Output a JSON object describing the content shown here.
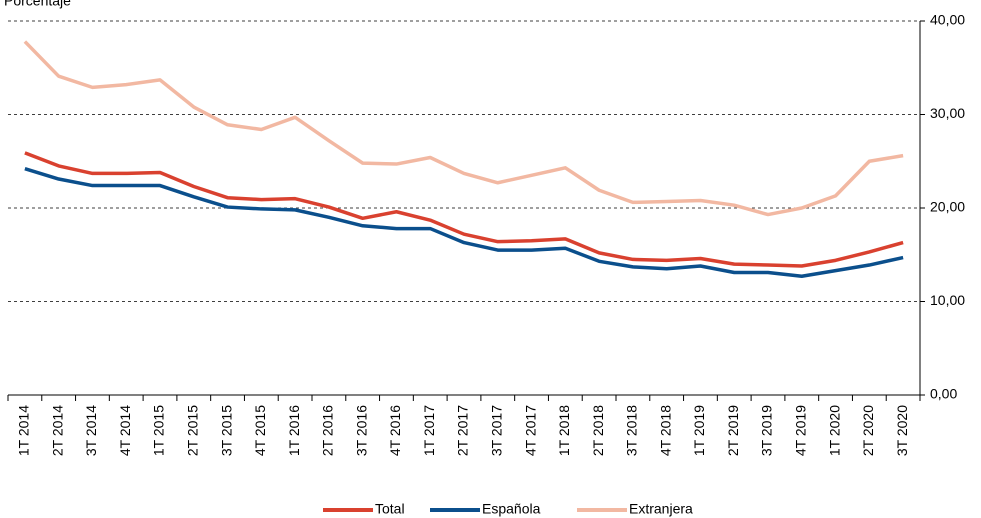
{
  "chart_data": {
    "type": "line",
    "y_label": "Porcentaje",
    "categories": [
      "1T 2014",
      "2T 2014",
      "3T 2014",
      "4T 2014",
      "1T 2015",
      "2T 2015",
      "3T 2015",
      "4T 2015",
      "1T 2016",
      "2T 2016",
      "3T 2016",
      "4T 2016",
      "1T 2017",
      "2T 2017",
      "3T 2017",
      "4T 2017",
      "1T 2018",
      "2T 2018",
      "3T 2018",
      "4T 2018",
      "1T 2019",
      "2T 2019",
      "3T 2019",
      "4T 2019",
      "1T 2020",
      "2T 2020",
      "3T 2020"
    ],
    "series": [
      {
        "name": "Total",
        "color": "#d9412f",
        "values": [
          25.9,
          24.5,
          23.7,
          23.7,
          23.8,
          22.3,
          21.1,
          20.9,
          21.0,
          20.1,
          18.9,
          19.6,
          18.7,
          17.2,
          16.4,
          16.5,
          16.7,
          15.2,
          14.5,
          14.4,
          14.6,
          14.0,
          13.9,
          13.8,
          14.4,
          15.3,
          16.3
        ]
      },
      {
        "name": "Española",
        "color": "#0b4f8c",
        "values": [
          24.2,
          23.1,
          22.4,
          22.4,
          22.4,
          21.2,
          20.1,
          19.9,
          19.8,
          19.0,
          18.1,
          17.8,
          17.8,
          16.3,
          15.5,
          15.5,
          15.7,
          14.3,
          13.7,
          13.5,
          13.8,
          13.1,
          13.1,
          12.7,
          13.3,
          13.9,
          14.7
        ]
      },
      {
        "name": "Extranjera",
        "color": "#f2b8a2",
        "values": [
          37.8,
          34.1,
          32.9,
          33.2,
          33.7,
          30.8,
          28.9,
          28.4,
          29.7,
          27.2,
          24.8,
          24.7,
          25.4,
          23.7,
          22.7,
          23.5,
          24.3,
          21.9,
          20.6,
          20.7,
          20.8,
          20.3,
          19.3,
          20.0,
          21.3,
          25.0,
          25.6
        ]
      }
    ],
    "ylim": [
      0,
      40
    ],
    "yticks": [
      {
        "value": 0,
        "label": "0,00"
      },
      {
        "value": 10,
        "label": "10,00"
      },
      {
        "value": 20,
        "label": "20,00"
      },
      {
        "value": 30,
        "label": "30,00"
      },
      {
        "value": 40,
        "label": "40,00"
      }
    ],
    "grid": true
  }
}
